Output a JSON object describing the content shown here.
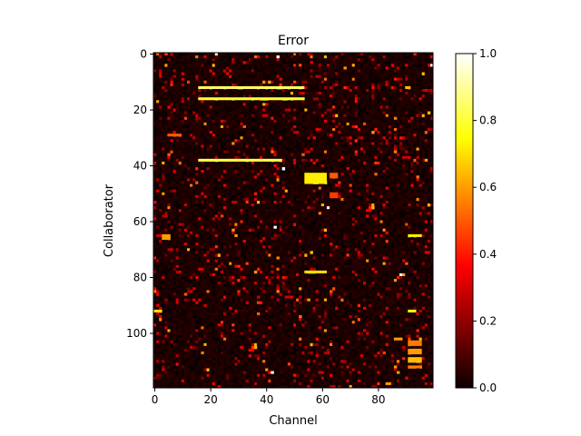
{
  "chart_data": {
    "type": "heatmap",
    "title": "Error",
    "xlabel": "Channel",
    "ylabel": "Collaborator",
    "n_cols": 100,
    "n_rows": 120,
    "x_ticks": [
      0,
      20,
      40,
      60,
      80
    ],
    "y_ticks": [
      0,
      20,
      40,
      60,
      80,
      100
    ],
    "colormap": "hot",
    "colorbar": {
      "ticks": [
        "0.0",
        "0.2",
        "0.4",
        "0.6",
        "0.8",
        "1.0"
      ],
      "min": 0.0,
      "max": 1.0
    },
    "grid": false,
    "background_value": 0.05,
    "highlights": [
      {
        "rows": [
          12,
          12
        ],
        "cols": [
          16,
          53
        ],
        "value": 0.85
      },
      {
        "rows": [
          16,
          16
        ],
        "cols": [
          16,
          53
        ],
        "value": 0.8
      },
      {
        "rows": [
          38,
          38
        ],
        "cols": [
          16,
          45
        ],
        "value": 0.82
      },
      {
        "rows": [
          43,
          46
        ],
        "cols": [
          54,
          61
        ],
        "value": 0.72
      },
      {
        "rows": [
          78,
          78
        ],
        "cols": [
          54,
          61
        ],
        "value": 0.7
      },
      {
        "rows": [
          65,
          65
        ],
        "cols": [
          91,
          95
        ],
        "value": 0.72
      },
      {
        "rows": [
          65,
          66
        ],
        "cols": [
          3,
          5
        ],
        "value": 0.6
      },
      {
        "rows": [
          92,
          92
        ],
        "cols": [
          0,
          2
        ],
        "value": 0.7
      },
      {
        "rows": [
          92,
          92
        ],
        "cols": [
          91,
          93
        ],
        "value": 0.75
      },
      {
        "rows": [
          12,
          12
        ],
        "cols": [
          90,
          91
        ],
        "value": 0.65
      },
      {
        "rows": [
          103,
          104
        ],
        "cols": [
          91,
          95
        ],
        "value": 0.55
      },
      {
        "rows": [
          106,
          107
        ],
        "cols": [
          91,
          95
        ],
        "value": 0.6
      },
      {
        "rows": [
          109,
          110
        ],
        "cols": [
          91,
          95
        ],
        "value": 0.65
      },
      {
        "rows": [
          112,
          112
        ],
        "cols": [
          91,
          95
        ],
        "value": 0.55
      },
      {
        "rows": [
          102,
          102
        ],
        "cols": [
          86,
          88
        ],
        "value": 0.6
      },
      {
        "rows": [
          118,
          118
        ],
        "cols": [
          83,
          84
        ],
        "value": 0.6
      },
      {
        "rows": [
          29,
          29
        ],
        "cols": [
          5,
          9
        ],
        "value": 0.5
      },
      {
        "rows": [
          50,
          51
        ],
        "cols": [
          63,
          65
        ],
        "value": 0.45
      },
      {
        "rows": [
          43,
          44
        ],
        "cols": [
          63,
          65
        ],
        "value": 0.5
      }
    ],
    "white_points": [
      {
        "row": 0,
        "col": 22
      },
      {
        "row": 1,
        "col": 44
      },
      {
        "row": 4,
        "col": 99
      },
      {
        "row": 41,
        "col": 46
      },
      {
        "row": 55,
        "col": 62
      },
      {
        "row": 62,
        "col": 43
      },
      {
        "row": 79,
        "col": 88
      },
      {
        "row": 114,
        "col": 42
      }
    ]
  }
}
